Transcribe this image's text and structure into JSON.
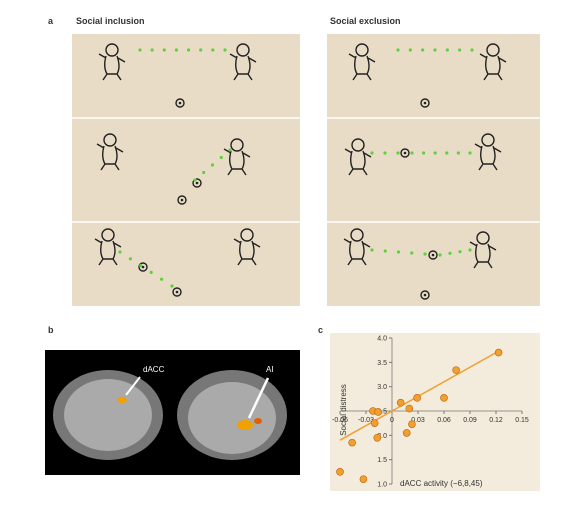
{
  "panels": {
    "a": {
      "label": "a",
      "left_title": "Social inclusion",
      "right_title": "Social exclusion"
    },
    "b": {
      "label": "b",
      "annotations": [
        "dACC",
        "AI"
      ]
    },
    "c": {
      "label": "c"
    }
  },
  "chart_data": {
    "type": "scatter",
    "x_label": "dACC activity (−6,8,45)",
    "y_label": "Social distress",
    "x": [
      -0.06,
      -0.046,
      -0.033,
      -0.022,
      -0.02,
      -0.017,
      -0.016,
      0.01,
      0.017,
      0.02,
      0.023,
      0.029,
      0.06,
      0.074,
      0.123
    ],
    "y": [
      1.25,
      1.85,
      1.1,
      2.5,
      2.25,
      1.95,
      2.48,
      2.67,
      2.05,
      2.55,
      2.23,
      2.77,
      2.77,
      3.34,
      3.7
    ],
    "color": "#f0a030",
    "trendline": {
      "x": [
        -0.06,
        0.12
      ],
      "y": [
        1.9,
        3.7
      ],
      "color": "#f0a030"
    },
    "xlim": [
      -0.06,
      0.15
    ],
    "ylim": [
      1,
      4
    ],
    "xticks": [
      -0.06,
      -0.03,
      0,
      0.03,
      0.06,
      0.09,
      0.12,
      0.15
    ],
    "yticks": [
      {
        "value": 1,
        "label": "1.0"
      },
      1.5,
      {
        "value": 2,
        "label": "2.0"
      },
      2.5,
      {
        "value": 3,
        "label": "3.0"
      },
      3.5,
      {
        "value": 4,
        "label": "4.0"
      }
    ],
    "axes_cross": [
      0,
      2.5
    ],
    "background": "#f3ecdc"
  }
}
